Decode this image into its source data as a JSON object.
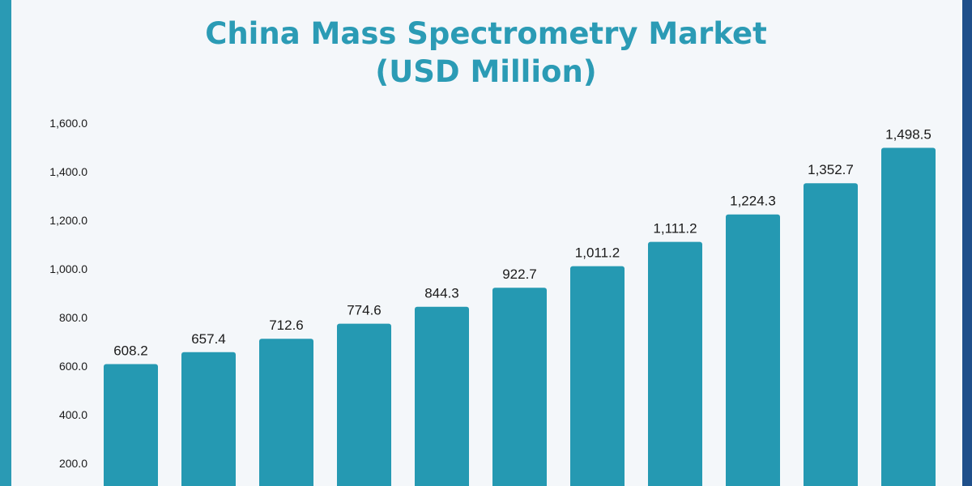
{
  "chart_data": {
    "type": "bar",
    "title": "China Mass Spectrometry Market",
    "subtitle": "(USD Million)",
    "xlabel": "",
    "ylabel": "",
    "ylim": [
      0,
      1600
    ],
    "yticks": [
      200,
      400,
      600,
      800,
      1000,
      1200,
      1400,
      1600
    ],
    "ytick_labels": [
      "200.0",
      "400.0",
      "600.0",
      "800.0",
      "1,000.0",
      "1,200.0",
      "1,400.0",
      "1,600.0"
    ],
    "values": [
      608.2,
      657.4,
      712.6,
      774.6,
      844.3,
      922.7,
      1011.2,
      1111.2,
      1224.3,
      1352.7,
      1498.5
    ],
    "value_labels": [
      "608.2",
      "657.4",
      "712.6",
      "774.6",
      "844.3",
      "922.7",
      "1,011.2",
      "1,111.2",
      "1,224.3",
      "1,352.7",
      "1,498.5"
    ],
    "grid": false,
    "legend": "none",
    "bar_color": "#2599b2"
  }
}
